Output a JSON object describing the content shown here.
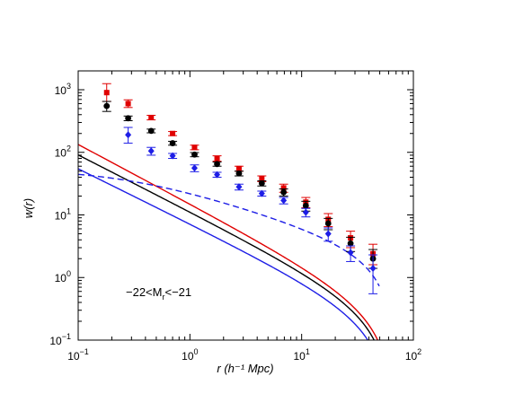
{
  "chart_data": {
    "type": "scatter",
    "xscale": "log",
    "yscale": "log",
    "xlim": [
      0.1,
      100
    ],
    "ylim": [
      0.1,
      2000
    ],
    "xlabel": "r (h⁻¹ Mpc)",
    "ylabel": "w(r)",
    "xticks": [
      {
        "value": 0.1,
        "base": "10",
        "exp": "−1"
      },
      {
        "value": 1,
        "base": "10",
        "exp": "0"
      },
      {
        "value": 10,
        "base": "10",
        "exp": "1"
      },
      {
        "value": 100,
        "base": "10",
        "exp": "2"
      }
    ],
    "yticks": [
      {
        "value": 0.1,
        "base": "10",
        "exp": "−1"
      },
      {
        "value": 1,
        "base": "10",
        "exp": "0"
      },
      {
        "value": 10,
        "base": "10",
        "exp": "1"
      },
      {
        "value": 100,
        "base": "10",
        "exp": "2"
      },
      {
        "value": 1000,
        "base": "10",
        "exp": "3"
      }
    ],
    "annotation": {
      "pre": "−22<M",
      "sub": "r",
      "post": "<−21"
    },
    "grid": false,
    "legend": "none",
    "series": [
      {
        "color": "#e00000",
        "marker": "square",
        "points": [
          {
            "x": 0.18,
            "y": 900,
            "ylo": 650,
            "yhi": 1250
          },
          {
            "x": 0.28,
            "y": 600,
            "ylo": 520,
            "yhi": 690
          },
          {
            "x": 0.45,
            "y": 360,
            "ylo": 330,
            "yhi": 390
          },
          {
            "x": 0.7,
            "y": 200,
            "ylo": 185,
            "yhi": 215
          },
          {
            "x": 1.1,
            "y": 120,
            "ylo": 110,
            "yhi": 130
          },
          {
            "x": 1.75,
            "y": 80,
            "ylo": 72,
            "yhi": 88
          },
          {
            "x": 2.75,
            "y": 55,
            "ylo": 50,
            "yhi": 60
          },
          {
            "x": 4.4,
            "y": 38,
            "ylo": 34,
            "yhi": 42
          },
          {
            "x": 6.9,
            "y": 27,
            "ylo": 23,
            "yhi": 31
          },
          {
            "x": 10.9,
            "y": 16,
            "ylo": 13,
            "yhi": 19
          },
          {
            "x": 17.3,
            "y": 8.5,
            "ylo": 6.5,
            "yhi": 10.5
          },
          {
            "x": 27.4,
            "y": 4.3,
            "ylo": 3.0,
            "yhi": 5.5
          },
          {
            "x": 43.5,
            "y": 2.4,
            "ylo": 1.6,
            "yhi": 3.4
          }
        ]
      },
      {
        "color": "#000000",
        "marker": "circle",
        "points": [
          {
            "x": 0.18,
            "y": 550,
            "ylo": 450,
            "yhi": 650
          },
          {
            "x": 0.28,
            "y": 350,
            "ylo": 320,
            "yhi": 380
          },
          {
            "x": 0.45,
            "y": 220,
            "ylo": 205,
            "yhi": 235
          },
          {
            "x": 0.7,
            "y": 140,
            "ylo": 130,
            "yhi": 150
          },
          {
            "x": 1.1,
            "y": 92,
            "ylo": 85,
            "yhi": 99
          },
          {
            "x": 1.75,
            "y": 65,
            "ylo": 60,
            "yhi": 70
          },
          {
            "x": 2.75,
            "y": 46,
            "ylo": 42,
            "yhi": 50
          },
          {
            "x": 4.4,
            "y": 32,
            "ylo": 29,
            "yhi": 35
          },
          {
            "x": 6.9,
            "y": 23,
            "ylo": 20,
            "yhi": 26
          },
          {
            "x": 10.9,
            "y": 14,
            "ylo": 11.5,
            "yhi": 16.5
          },
          {
            "x": 17.3,
            "y": 7.3,
            "ylo": 5.8,
            "yhi": 8.8
          },
          {
            "x": 27.4,
            "y": 3.5,
            "ylo": 2.6,
            "yhi": 4.4
          },
          {
            "x": 43.5,
            "y": 2.0,
            "ylo": 1.4,
            "yhi": 2.8
          }
        ]
      },
      {
        "color": "#1e1ee6",
        "marker": "diamond",
        "points": [
          {
            "x": 0.28,
            "y": 190,
            "ylo": 140,
            "yhi": 250
          },
          {
            "x": 0.45,
            "y": 105,
            "ylo": 90,
            "yhi": 120
          },
          {
            "x": 0.7,
            "y": 88,
            "ylo": 80,
            "yhi": 96
          },
          {
            "x": 1.1,
            "y": 56,
            "ylo": 49,
            "yhi": 63
          },
          {
            "x": 1.75,
            "y": 44,
            "ylo": 40,
            "yhi": 48
          },
          {
            "x": 2.75,
            "y": 28,
            "ylo": 25,
            "yhi": 31
          },
          {
            "x": 4.4,
            "y": 22,
            "ylo": 20,
            "yhi": 24
          },
          {
            "x": 6.9,
            "y": 17,
            "ylo": 15,
            "yhi": 19
          },
          {
            "x": 10.9,
            "y": 11,
            "ylo": 9.3,
            "yhi": 12.7
          },
          {
            "x": 17.3,
            "y": 5.0,
            "ylo": 3.8,
            "yhi": 6.2
          },
          {
            "x": 27.4,
            "y": 2.5,
            "ylo": 1.8,
            "yhi": 3.2
          },
          {
            "x": 43.5,
            "y": 1.4,
            "ylo": 0.55,
            "yhi": 2.3
          }
        ]
      }
    ],
    "curves": [
      {
        "color": "#e00000",
        "dash": "solid",
        "A": 15,
        "gamma": 0.95,
        "r0": 65
      },
      {
        "color": "#000000",
        "dash": "solid",
        "A": 11.2,
        "gamma": 0.91,
        "r0": 62
      },
      {
        "color": "#1e1ee6",
        "dash": "solid",
        "A": 7.2,
        "gamma": 0.88,
        "r0": 60
      },
      {
        "color": "#1e1ee6",
        "dash": "dashed",
        "A": 25,
        "gamma": 0.55,
        "r0": 66,
        "core": 0.25
      }
    ]
  }
}
